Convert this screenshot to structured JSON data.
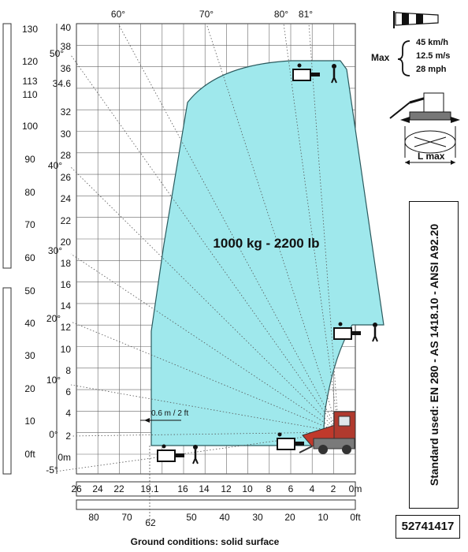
{
  "load": {
    "capacity_label": "1000 kg - 2200 lb"
  },
  "angles": [
    "60°",
    "70°",
    "80°",
    "81°",
    "50°",
    "40°",
    "30°",
    "20°",
    "10°",
    "0°",
    "-5°"
  ],
  "height_m_ticks": [
    "40",
    "38",
    "36",
    "34.6",
    "32",
    "30",
    "28",
    "26",
    "24",
    "22",
    "20",
    "18",
    "16",
    "14",
    "12",
    "10",
    "8",
    "6",
    "4",
    "2",
    "0m"
  ],
  "height_ft_ticks": [
    "130",
    "120",
    "113",
    "110",
    "100",
    "90",
    "80",
    "70",
    "60",
    "50",
    "40",
    "30",
    "20",
    "10",
    "0ft"
  ],
  "reach_m_ticks": [
    "26",
    "24",
    "22",
    "19.1",
    "16",
    "14",
    "12",
    "10",
    "8",
    "6",
    "4",
    "2",
    "0m"
  ],
  "reach_ft_ticks": [
    "80",
    "70",
    "62",
    "50",
    "40",
    "30",
    "20",
    "10",
    "0ft"
  ],
  "clearance_label": "0.6 m / 2 ft",
  "wind": {
    "max_label": "Max",
    "kmh": "45 km/h",
    "ms": "12.5 m/s",
    "mph": "28 mph"
  },
  "stabilizer_label": "L max",
  "standard_text": "Standard used: EN 280 - AS 1418.10 - ANSI A92.20",
  "model_code": "52741417",
  "ground_conditions": "Ground conditions:  solid surface",
  "colors": {
    "envelope_fill": "#9fe8ec",
    "envelope_stroke": "#2a5a5e",
    "grid": "#555555",
    "machine_red": "#c0392b"
  }
}
